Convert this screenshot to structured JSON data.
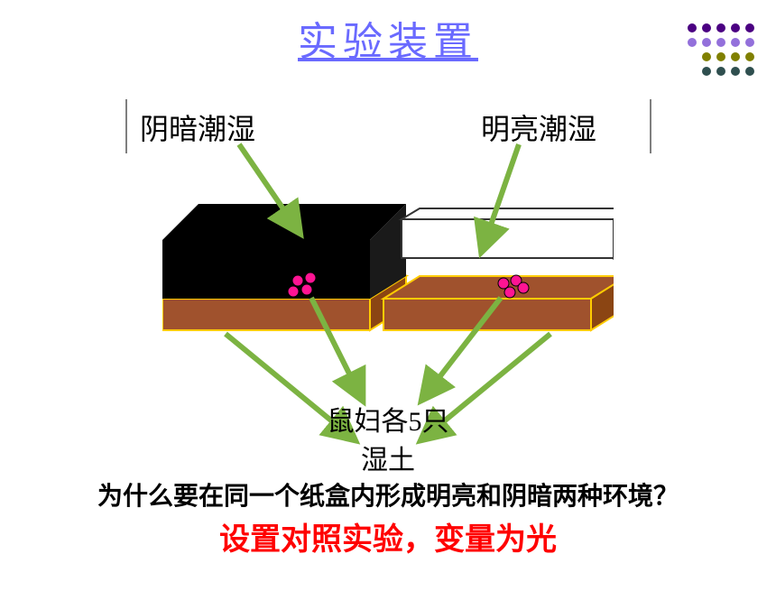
{
  "title": {
    "text": "实验装置",
    "color": "#6a6aff"
  },
  "dotCluster": {
    "colors": [
      "#4b0082",
      "#9370db",
      "#808000",
      "#2f4f4f"
    ],
    "rows": [
      [
        0,
        0,
        0,
        0,
        0
      ],
      [
        1,
        1,
        1,
        1,
        1
      ],
      [
        2,
        2,
        2,
        2
      ],
      [
        3,
        3,
        3,
        3
      ]
    ]
  },
  "labels": {
    "leftTop": "阴暗潮湿",
    "rightTop": "明亮潮湿",
    "woodlice": "鼠妇各5只",
    "wetSoil": "湿土"
  },
  "question": "为什么要在同一个纸盒内形成明亮和阴暗两种环境？",
  "answer": {
    "text": "设置对照实验，变量为光",
    "color": "#ff0000"
  },
  "boxes": {
    "soilColor": "#a0522d",
    "soilBorder": "#ffcc00",
    "darkLidColor": "#000000",
    "lightLidColor": "#ffffff",
    "lightLidBorder": "#333333",
    "pinkDot": "#ff1493",
    "pinkDotBorder": "#000000"
  },
  "arrows": {
    "stroke": "#7cb342",
    "width": 6
  },
  "positions": {
    "leftLabelX": 155,
    "rightLabelX": 533,
    "vline1X": 139,
    "vline2X": 720
  }
}
